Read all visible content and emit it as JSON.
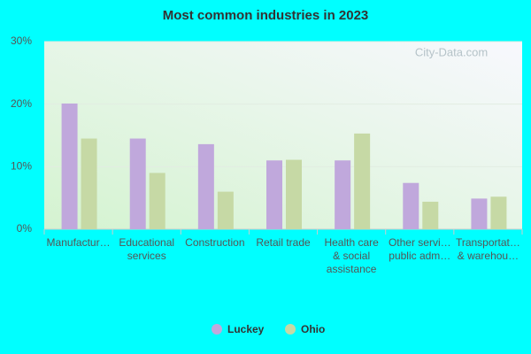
{
  "chart_data": {
    "type": "bar",
    "title": "Most common industries in 2023",
    "watermark": "City-Data.com",
    "categories": [
      "Manufactur…",
      "Educational\nservices",
      "Construction",
      "Retail trade",
      "Health care\n& social\nassistance",
      "Other servi…\npublic adm…",
      "Transportat…\n& warehou…"
    ],
    "series": [
      {
        "name": "Luckey",
        "color": "#c0a8dc",
        "values": [
          20.1,
          14.5,
          13.6,
          11.0,
          11.0,
          7.4,
          4.9
        ]
      },
      {
        "name": "Ohio",
        "color": "#c6d9a5",
        "values": [
          14.5,
          9.0,
          6.0,
          11.1,
          15.3,
          4.4,
          5.2
        ]
      }
    ],
    "ylim": [
      0,
      30
    ],
    "yticks": [
      {
        "value": 0,
        "label": "0%"
      },
      {
        "value": 10,
        "label": "10%"
      },
      {
        "value": 20,
        "label": "20%"
      },
      {
        "value": 30,
        "label": "30%"
      }
    ],
    "grid": true
  }
}
